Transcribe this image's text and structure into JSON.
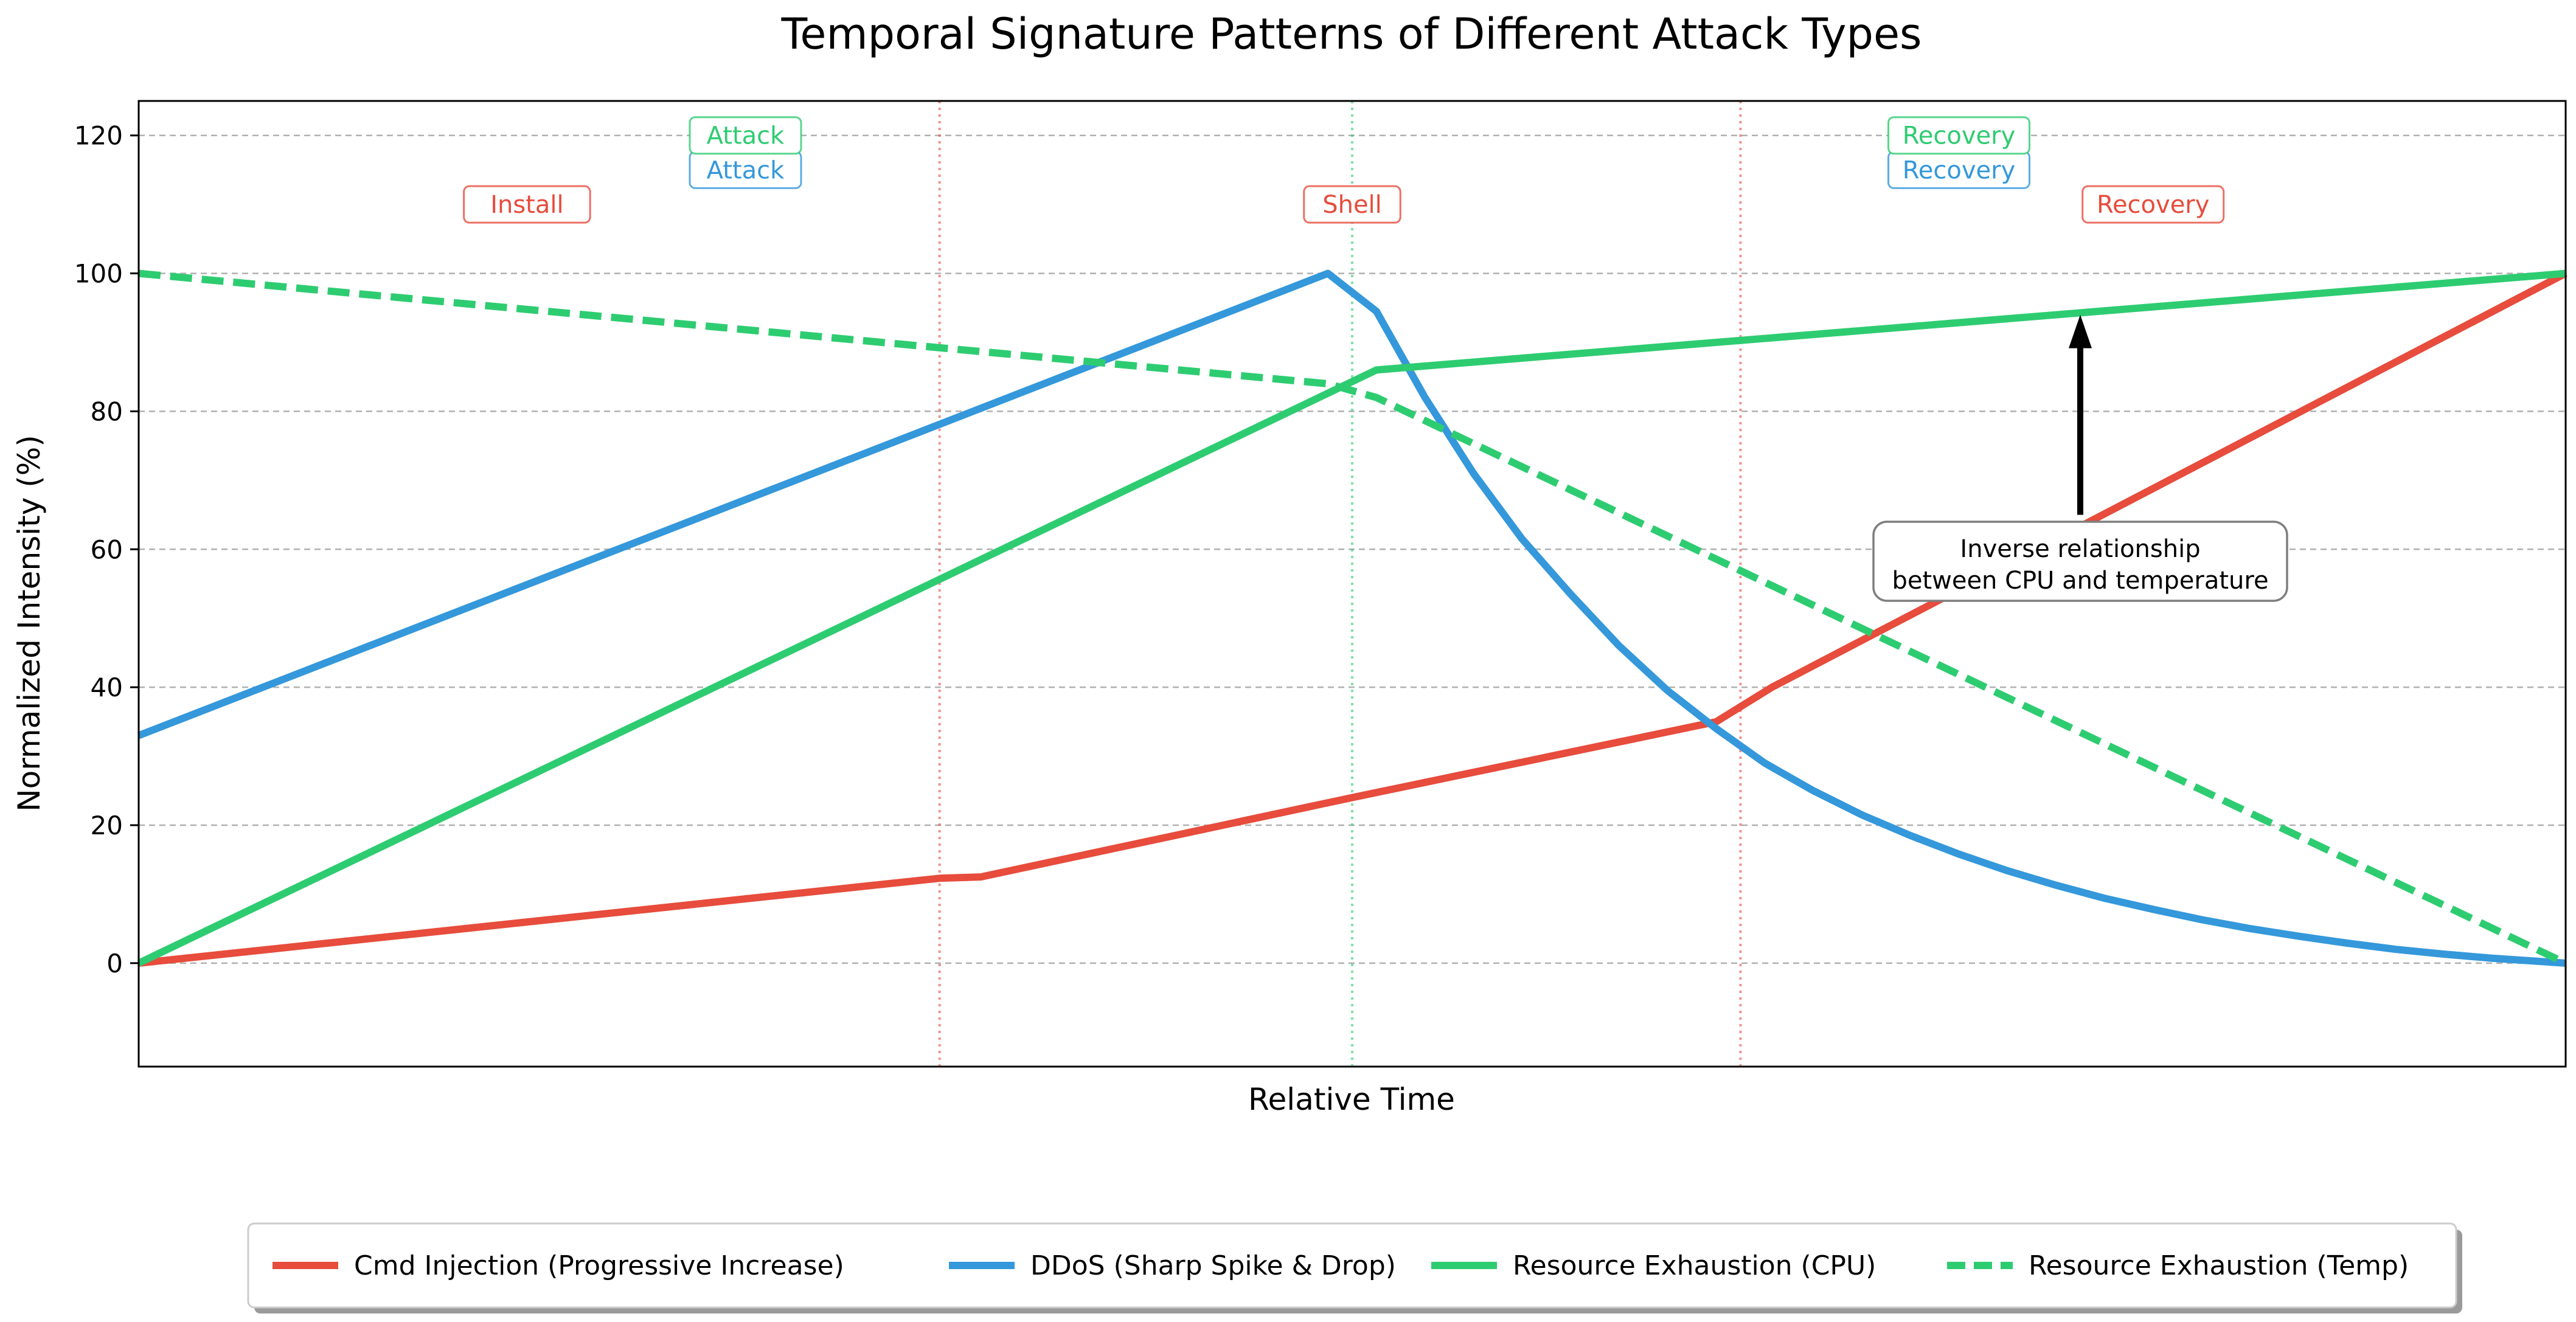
{
  "chart_data": {
    "type": "line",
    "title": "Temporal Signature Patterns of Different Attack Types",
    "xlabel": "Relative Time",
    "ylabel": "Normalized Intensity (%)",
    "xlim": [
      0,
      100
    ],
    "ylim": [
      -15,
      125
    ],
    "yticks": [
      0,
      20,
      40,
      60,
      80,
      100,
      120
    ],
    "yticklabels": [
      "0",
      "20",
      "40",
      "60",
      "80",
      "100",
      "120"
    ],
    "grid": {
      "y": true,
      "x": false,
      "style": "dashed"
    },
    "legend": {
      "placement": "bottom-center",
      "columns": 4
    },
    "series": [
      {
        "name": "Cmd Injection (Progressive Increase)",
        "color": "#e74c3c",
        "dash": "solid",
        "x": [
          0,
          33,
          34.7,
          50,
          65,
          67.3,
          100
        ],
        "y": [
          0,
          12.3,
          12.5,
          24,
          35,
          40,
          100
        ]
      },
      {
        "name": "DDoS (Sharp Spike & Drop)",
        "color": "#3498db",
        "dash": "solid",
        "x": [
          0,
          49,
          51,
          53,
          55,
          57,
          59,
          61,
          63,
          65,
          67,
          69,
          71,
          73,
          75,
          77,
          79,
          81,
          83,
          85,
          87,
          89,
          91,
          93,
          95,
          97,
          100
        ],
        "y": [
          33,
          100,
          94.5,
          82,
          71,
          61.5,
          53.5,
          46,
          39.5,
          34,
          29,
          25,
          21.5,
          18.5,
          15.8,
          13.4,
          11.3,
          9.4,
          7.8,
          6.3,
          5,
          3.9,
          2.9,
          2,
          1.3,
          0.7,
          0
        ]
      },
      {
        "name": "Resource Exhaustion (CPU)",
        "color": "#2ecc71",
        "dash": "solid",
        "x": [
          0,
          51,
          100
        ],
        "y": [
          0,
          86,
          100
        ]
      },
      {
        "name": "Resource Exhaustion (Temp)",
        "color": "#2ecc71",
        "dash": "dashed",
        "x": [
          0,
          49,
          51,
          100
        ],
        "y": [
          100,
          84,
          82,
          0
        ]
      }
    ],
    "phase_lines": [
      {
        "x": 33,
        "color": "#e74c3c"
      },
      {
        "x": 50,
        "color": "#2ecc71"
      },
      {
        "x": 66,
        "color": "#e74c3c"
      }
    ],
    "phase_labels": [
      {
        "text": "Install",
        "x": 16,
        "y": 110,
        "color": "#e74c3c"
      },
      {
        "text": "Shell",
        "x": 50,
        "y": 110,
        "color": "#e74c3c"
      },
      {
        "text": "Recovery",
        "x": 83,
        "y": 110,
        "color": "#e74c3c"
      },
      {
        "text": "Attack",
        "x": 25,
        "y": 115,
        "color": "#3498db"
      },
      {
        "text": "Recovery",
        "x": 75,
        "y": 115,
        "color": "#3498db"
      },
      {
        "text": "Attack",
        "x": 25,
        "y": 120,
        "color": "#2ecc71"
      },
      {
        "text": "Recovery",
        "x": 75,
        "y": 120,
        "color": "#2ecc71"
      }
    ],
    "annotation": {
      "text_lines": [
        "Inverse relationship",
        "between CPU and temperature"
      ],
      "text_x": 80,
      "text_y": 58,
      "arrow_to": {
        "x": 80,
        "y": 94
      }
    }
  }
}
